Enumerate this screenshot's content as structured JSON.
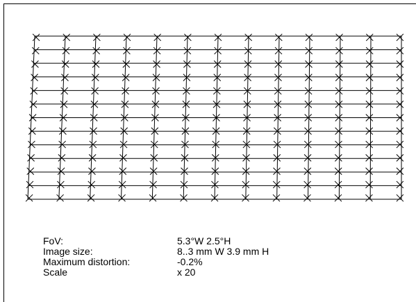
{
  "grid": {
    "columns": 13,
    "rows": 13,
    "line_color": "#000000",
    "marker": "x"
  },
  "info": [
    {
      "label": "FoV:",
      "value": "5.3°W 2.5°H"
    },
    {
      "label": "Image size:",
      "value": "8..3 mm W 3.9 mm H"
    },
    {
      "label": "Maximum distortion:",
      "value": "-0.2%"
    },
    {
      "label": "Scale",
      "value": "x 20"
    }
  ]
}
